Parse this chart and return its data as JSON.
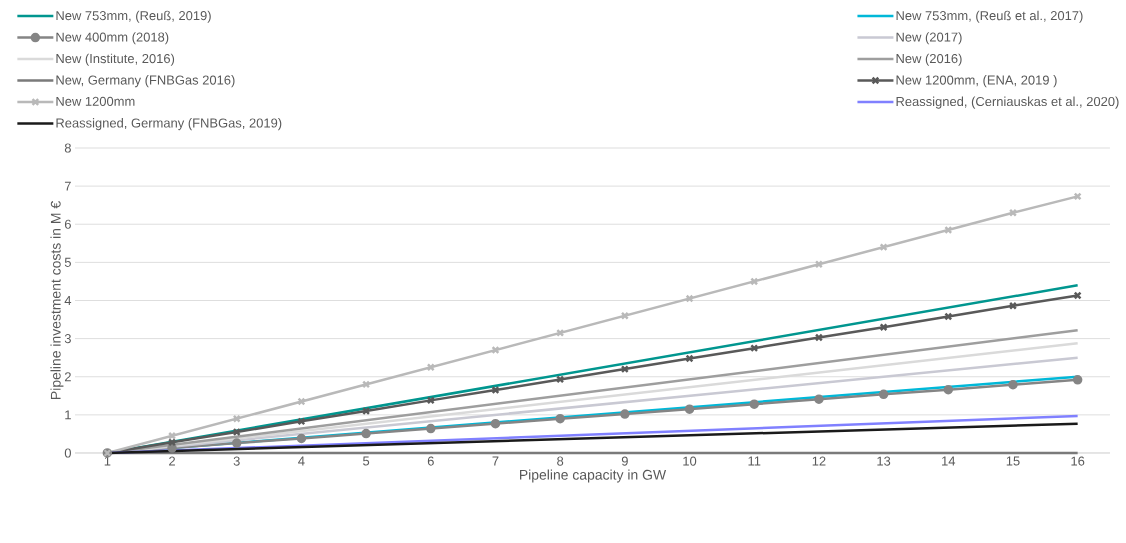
{
  "chart_data": {
    "type": "line",
    "xlabel": "Pipeline capacity in GW",
    "ylabel": "Pipeline investment costs in M €",
    "xlim": [
      0.5,
      16.5
    ],
    "xticks": [
      1,
      2,
      3,
      4,
      5,
      6,
      7,
      8,
      9,
      10,
      11,
      12,
      13,
      14,
      15,
      16
    ],
    "ylim": [
      0,
      8
    ],
    "yticks": [
      0,
      1,
      2,
      3,
      4,
      5,
      6,
      7,
      8
    ],
    "grid": "y",
    "legend": "top",
    "marker": "none",
    "line_style": "solid",
    "series": [
      {
        "name": "New 753mm, (Reuß, 2019)",
        "color": "#00968f",
        "x": [
          1,
          16
        ],
        "values": [
          0,
          4.4
        ]
      },
      {
        "name": "New 753mm, (Reuß et al., 2017)",
        "color": "#00b8d8",
        "x": [
          1,
          16
        ],
        "values": [
          0,
          2.0
        ]
      },
      {
        "name": "New 400mm (2018)",
        "color": "#858585",
        "x": [
          1,
          2,
          3,
          4,
          5,
          6,
          7,
          8,
          9,
          10,
          11,
          12,
          13,
          14,
          15,
          16
        ],
        "values": [
          0,
          0.13,
          0.26,
          0.38,
          0.51,
          0.64,
          0.77,
          0.9,
          1.02,
          1.15,
          1.28,
          1.41,
          1.54,
          1.66,
          1.79,
          1.92
        ],
        "marker": "circle"
      },
      {
        "name": "New (2017)",
        "color": "#c9c9d3",
        "x": [
          1,
          16
        ],
        "values": [
          0,
          2.5
        ]
      },
      {
        "name": "New (Institute, 2016)",
        "color": "#dadada",
        "x": [
          1,
          16
        ],
        "values": [
          0,
          2.88
        ]
      },
      {
        "name": "New (2016)",
        "color": "#9e9e9e",
        "x": [
          1,
          16
        ],
        "values": [
          0,
          3.22
        ]
      },
      {
        "name": "New, Germany (FNBGas 2016)",
        "color": "#7a7a7a",
        "x": [
          1,
          16
        ],
        "values": [
          0,
          0
        ]
      },
      {
        "name": "New 1200mm, (ENA, 2019 )",
        "color": "#595959",
        "x": [
          1,
          2,
          3,
          4,
          5,
          6,
          7,
          8,
          9,
          10,
          11,
          12,
          13,
          14,
          15,
          16
        ],
        "values": [
          0,
          0.28,
          0.55,
          0.83,
          1.1,
          1.38,
          1.65,
          1.93,
          2.2,
          2.48,
          2.75,
          3.03,
          3.3,
          3.58,
          3.86,
          4.13
        ],
        "marker": "cross"
      },
      {
        "name": "New 1200mm",
        "color": "#b9b9b9",
        "x": [
          1,
          2,
          3,
          4,
          5,
          6,
          7,
          8,
          9,
          10,
          11,
          12,
          13,
          14,
          15,
          16
        ],
        "values": [
          0,
          0.45,
          0.9,
          1.35,
          1.8,
          2.25,
          2.7,
          3.15,
          3.6,
          4.05,
          4.5,
          4.95,
          5.4,
          5.85,
          6.3,
          6.73
        ],
        "marker": "cross"
      },
      {
        "name": "Reassigned, (Cerniauskas et al., 2020)",
        "color": "#8080ff",
        "x": [
          1,
          16
        ],
        "values": [
          0,
          0.97
        ]
      },
      {
        "name": "Reassigned, Germany (FNBGas, 2019)",
        "color": "#1a1a1a",
        "x": [
          1,
          16
        ],
        "values": [
          0,
          0.77
        ]
      }
    ]
  }
}
